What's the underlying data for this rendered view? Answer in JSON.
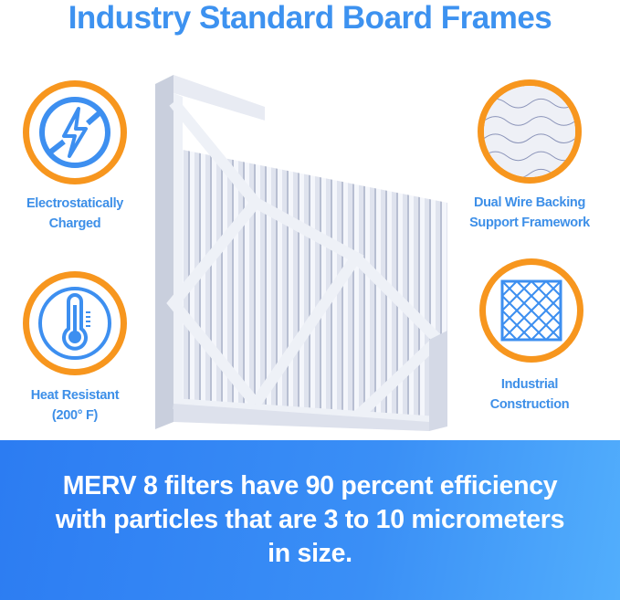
{
  "title": "Industry Standard Board Frames",
  "features": [
    {
      "icon": "no-static-icon",
      "label_lines": [
        "Electrostatically",
        "Charged"
      ]
    },
    {
      "icon": "thermometer-icon",
      "label_lines": [
        "Heat Resistant",
        "(200° F)"
      ]
    },
    {
      "icon": "wire-mesh-icon",
      "label_lines": [
        "Dual Wire Backing",
        "Support Framework"
      ]
    },
    {
      "icon": "grid-frame-icon",
      "label_lines": [
        "Industrial",
        "Construction"
      ]
    }
  ],
  "banner": {
    "text": "MERV 8 filters have 90 percent efficiency with particles that are 3 to 10 micrometers in size."
  },
  "colors": {
    "title": "#3d92f0",
    "ring": "#f7961e",
    "icon": "#3d8ff0",
    "banner": "#2c7cf2"
  }
}
